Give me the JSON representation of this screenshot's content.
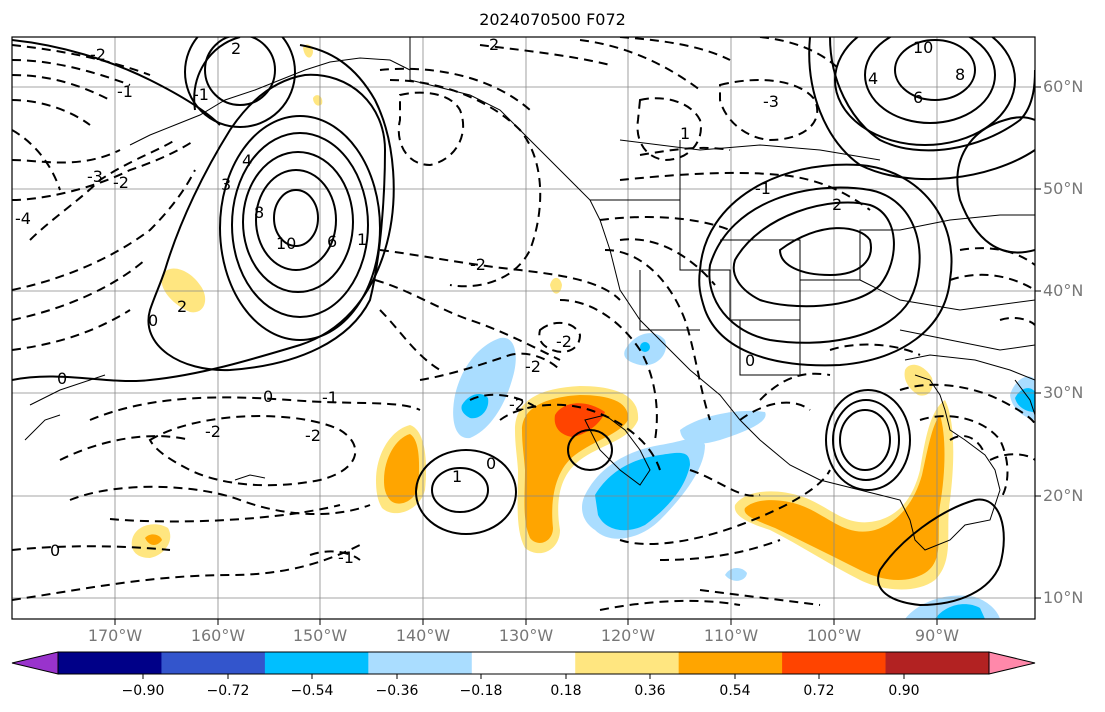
{
  "title": "2024070500 F072",
  "lat_labels": [
    "60°N",
    "50°N",
    "40°N",
    "30°N",
    "20°N",
    "10°N"
  ],
  "lon_labels": [
    "170°W",
    "160°W",
    "150°W",
    "140°W",
    "130°W",
    "120°W",
    "110°W",
    "100°W",
    "90°W"
  ],
  "colorbar": {
    "colors": [
      "#9933cc",
      "#000088",
      "#3355cc",
      "#00bfff",
      "#aaddff",
      "#ffffff",
      "#ffe680",
      "#ffa500",
      "#ff4400",
      "#b22222",
      "#ff88aa"
    ],
    "labels": [
      "−0.90",
      "−0.72",
      "−0.54",
      "−0.36",
      "−0.18",
      "0.18",
      "0.36",
      "0.54",
      "0.72",
      "0.90"
    ]
  },
  "contour_labels": [
    "0",
    "2",
    "-2",
    "4",
    "-4",
    "6",
    "8",
    "10",
    "-3",
    "3",
    "-1",
    "1",
    "-1",
    "-2",
    "-2",
    "-2",
    "-1",
    "0",
    "1",
    "-2",
    "0",
    "-2",
    "2",
    "2",
    "-2",
    "0",
    "-2",
    "0",
    "0",
    "1",
    "2",
    "4",
    "6",
    "8",
    "10",
    "-3",
    "-1",
    "-1"
  ],
  "colors": {
    "line": "#000000",
    "grid": "#888888",
    "coast": "#000000"
  }
}
